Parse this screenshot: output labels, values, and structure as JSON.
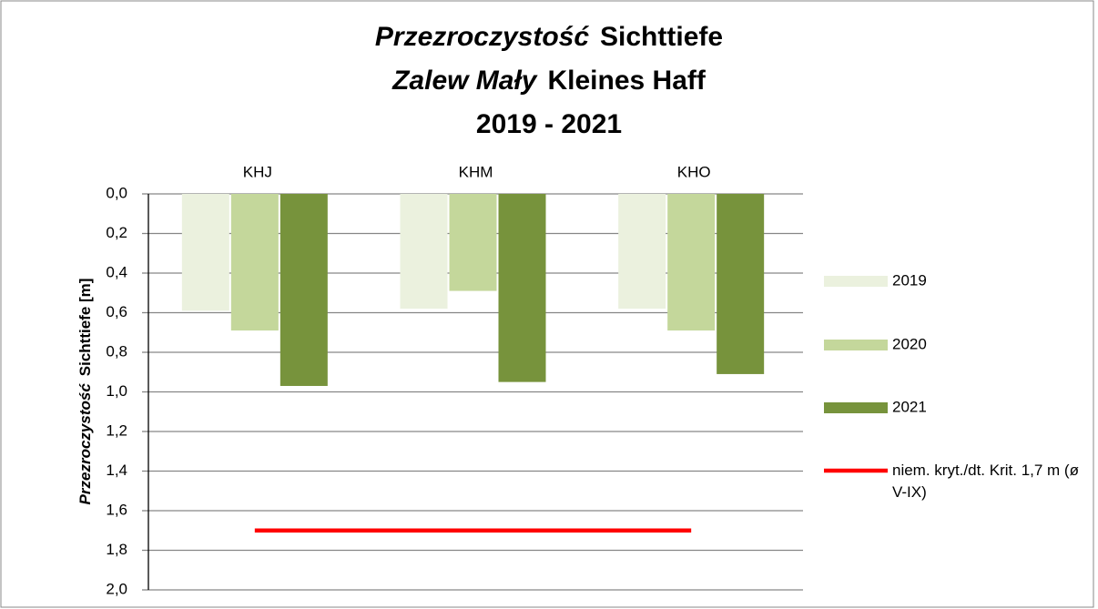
{
  "chart_data": {
    "type": "bar",
    "title_lines": [
      {
        "pl": "Przezroczystość",
        "de": "Sichttiefe"
      },
      {
        "pl": "Zalew Mały",
        "de": "Kleines Haff"
      },
      {
        "de": "2019 - 2021"
      }
    ],
    "ylabel": {
      "pl": "Przezroczystość",
      "de": "Sichttiefe [m]"
    },
    "categories": [
      "KHJ",
      "KHM",
      "KHO"
    ],
    "series": [
      {
        "name": "2019",
        "color": "#ebf1de",
        "values": [
          0.59,
          0.58,
          0.58
        ]
      },
      {
        "name": "2020",
        "color": "#c4d79b",
        "values": [
          0.69,
          0.49,
          0.69
        ]
      },
      {
        "name": "2021",
        "color": "#77933c",
        "values": [
          0.97,
          0.95,
          0.91
        ]
      }
    ],
    "threshold": {
      "name": "niem. kryt./dt. Krit. 1,7 m (ø V-IX)",
      "color": "#ff0000",
      "values": [
        1.7,
        1.7,
        1.7
      ]
    },
    "ylim": [
      0,
      2
    ],
    "y_inverted": true,
    "yticks": [
      {
        "value": 0,
        "label": "0,0"
      },
      {
        "value": 0.2,
        "label": "0,2"
      },
      {
        "value": 0.4,
        "label": "0,4"
      },
      {
        "value": 0.6,
        "label": "0,6"
      },
      {
        "value": 0.8,
        "label": "0,8"
      },
      {
        "value": 1.0,
        "label": "1,0"
      },
      {
        "value": 1.2,
        "label": "1,2"
      },
      {
        "value": 1.4,
        "label": "1,4"
      },
      {
        "value": 1.6,
        "label": "1,6"
      },
      {
        "value": 1.8,
        "label": "1,8"
      },
      {
        "value": 2.0,
        "label": "2,0"
      }
    ],
    "grid": true,
    "legend": "right"
  }
}
